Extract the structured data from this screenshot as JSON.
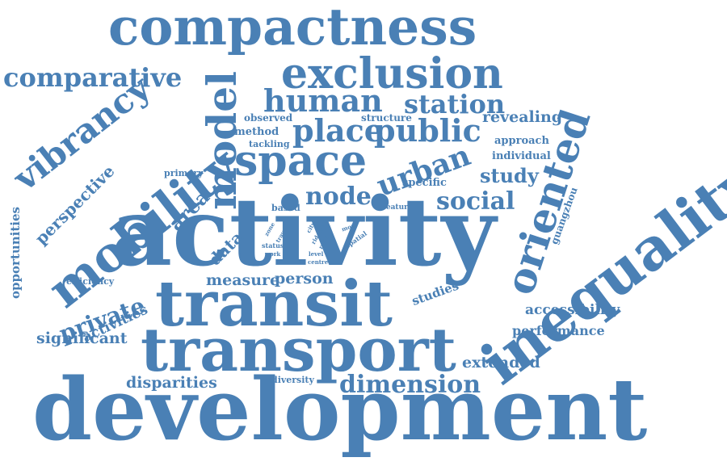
{
  "color": "#4a80b5",
  "words": [
    {
      "text": "development",
      "weight": 100
    },
    {
      "text": "activity",
      "weight": 100
    },
    {
      "text": "transit",
      "weight": 70
    },
    {
      "text": "transport",
      "weight": 70
    },
    {
      "text": "inequality",
      "weight": 72
    },
    {
      "text": "compactness",
      "weight": 60
    },
    {
      "text": "mobility",
      "weight": 58
    },
    {
      "text": "space",
      "weight": 47
    },
    {
      "text": "oriented",
      "weight": 48
    },
    {
      "text": "model",
      "weight": 47
    },
    {
      "text": "exclusion",
      "weight": 44
    },
    {
      "text": "vibrancy",
      "weight": 40
    },
    {
      "text": "human",
      "weight": 36
    },
    {
      "text": "place",
      "weight": 34
    },
    {
      "text": "public",
      "weight": 34
    },
    {
      "text": "urban",
      "weight": 32
    },
    {
      "text": "station",
      "weight": 30
    },
    {
      "text": "node",
      "weight": 28
    },
    {
      "text": "social",
      "weight": 28
    },
    {
      "text": "comparative",
      "weight": 28
    },
    {
      "text": "dimension",
      "weight": 28
    },
    {
      "text": "private",
      "weight": 26
    },
    {
      "text": "area",
      "weight": 22
    },
    {
      "text": "study",
      "weight": 22
    },
    {
      "text": "perspective",
      "weight": 20
    },
    {
      "text": "data",
      "weight": 20
    },
    {
      "text": "measure",
      "weight": 18
    },
    {
      "text": "person",
      "weight": 18
    },
    {
      "text": "revealing",
      "weight": 18
    },
    {
      "text": "disparities",
      "weight": 18
    },
    {
      "text": "significant",
      "weight": 18
    },
    {
      "text": "activities",
      "weight": 16
    },
    {
      "text": "extended",
      "weight": 18
    },
    {
      "text": "accessibility",
      "weight": 17
    },
    {
      "text": "performance",
      "weight": 16
    },
    {
      "text": "opportunities",
      "weight": 15
    },
    {
      "text": "studies",
      "weight": 15
    },
    {
      "text": "method",
      "weight": 13
    },
    {
      "text": "observed",
      "weight": 12
    },
    {
      "text": "structure",
      "weight": 12
    },
    {
      "text": "approach",
      "weight": 13
    },
    {
      "text": "individual",
      "weight": 13
    },
    {
      "text": "specific",
      "weight": 13
    },
    {
      "text": "tackling",
      "weight": 11
    },
    {
      "text": "guangzhou",
      "weight": 11
    },
    {
      "text": "efficiency",
      "weight": 11
    },
    {
      "text": "primary",
      "weight": 10
    },
    {
      "text": "based",
      "weight": 11
    },
    {
      "text": "feature",
      "weight": 9
    },
    {
      "text": "diversity",
      "weight": 11
    },
    {
      "text": "zone",
      "weight": 7
    },
    {
      "text": "travel",
      "weight": 7
    },
    {
      "text": "status",
      "weight": 7
    },
    {
      "text": "work",
      "weight": 7
    },
    {
      "text": "city",
      "weight": 7
    },
    {
      "text": "rider",
      "weight": 7
    },
    {
      "text": "ratio",
      "weight": 7
    },
    {
      "text": "level",
      "weight": 7
    },
    {
      "text": "centre",
      "weight": 7
    },
    {
      "text": "gap",
      "weight": 7
    },
    {
      "text": "more",
      "weight": 7
    },
    {
      "text": "spatial",
      "weight": 8
    }
  ]
}
